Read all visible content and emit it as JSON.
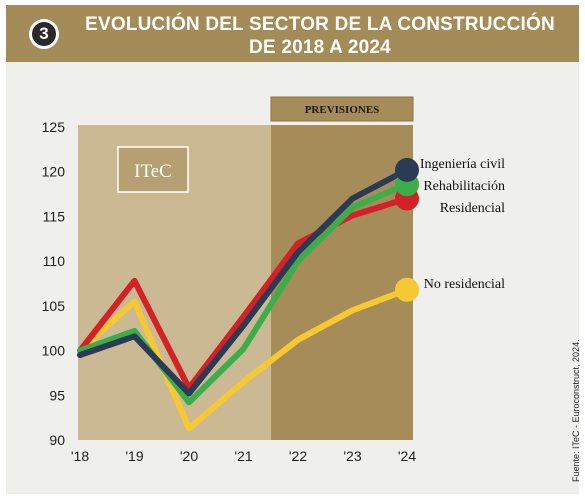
{
  "header": {
    "number": "3",
    "title_line1": "EVOLUCIÓN DEL SECTOR DE LA CONSTRUCCIÓN",
    "title_line2": "DE 2018 A 2024"
  },
  "colors": {
    "header_bg": "#a48c58",
    "panel_light": "#cbb994",
    "panel_dark": "#a58c59",
    "ingenieria_civil": "#2b3a55",
    "rehabilitacion": "#3cae49",
    "residencial": "#d42128",
    "no_residencial": "#f6c933"
  },
  "chart_data": {
    "type": "line",
    "x": [
      "'18",
      "'19",
      "'20",
      "'21",
      "'22",
      "'23",
      "'24"
    ],
    "ylim": [
      90,
      125
    ],
    "yticks": [
      90,
      95,
      100,
      105,
      110,
      115,
      120,
      125
    ],
    "grid": false,
    "forecast_label": "PREVISIONES",
    "forecast_from": "'22",
    "box_label": "ITeC",
    "series": [
      {
        "name": "No residencial",
        "values": [
          100,
          105.5,
          91.3,
          96.5,
          101.2,
          104.5,
          106.8
        ],
        "color": "#f6c933"
      },
      {
        "name": "Residencial",
        "values": [
          100,
          107.8,
          95.8,
          103.8,
          112,
          115.1,
          117
        ],
        "color": "#d42128"
      },
      {
        "name": "Rehabilitación",
        "values": [
          100,
          102.2,
          94.2,
          100.2,
          110,
          116,
          118.6
        ],
        "color": "#3cae49"
      },
      {
        "name": "Ingeniería civil",
        "values": [
          99.5,
          101.6,
          95.2,
          102.8,
          111,
          117,
          120.2
        ],
        "color": "#2b3a55"
      }
    ]
  },
  "source": "Fuente: ITeC - Euroconstruct, 2024."
}
